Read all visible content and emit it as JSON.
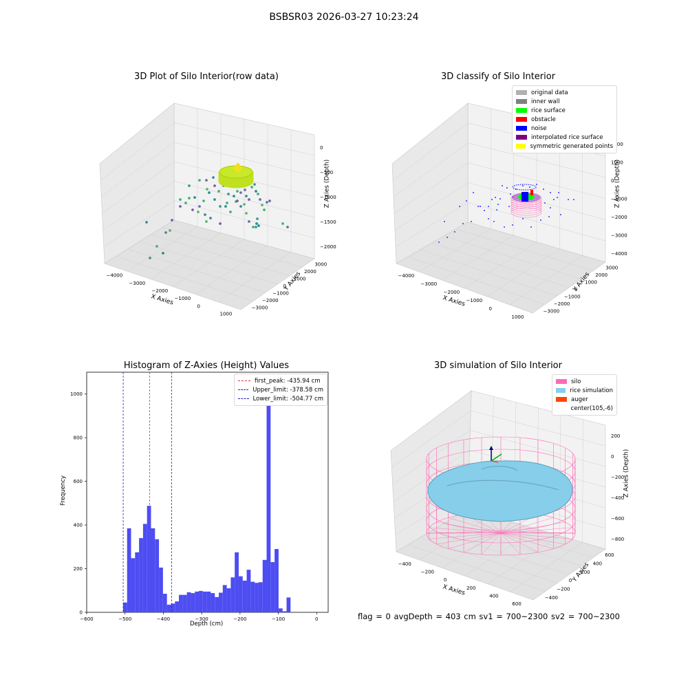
{
  "figure": {
    "title": "BSBSR03 2026-03-27 10:23:24",
    "footer": "flag = 0     avgDepth = 403 cm  sv1 = 700~2300  sv2 = 700~2300"
  },
  "colors": {
    "background": "#ffffff",
    "pane": "#f2f2f2",
    "grid": "#d0d0d0",
    "hist_bar": "#4d4df2",
    "first_peak": "#e03030",
    "limits": "#2020c0",
    "silo": "#ff69b4",
    "rice": "#87ceeb",
    "auger": "#ff4500"
  },
  "panels": {
    "raw": {
      "title": "3D Plot of Silo Interior(row data)",
      "x_ticks": [
        "−4000",
        "−3000",
        "−2000",
        "−1000",
        "0",
        "1000"
      ],
      "y_ticks": [
        "−3000",
        "−2000",
        "−1000",
        "0",
        "1000",
        "2000",
        "3000"
      ],
      "z_ticks": [
        "0",
        "−500",
        "−1000",
        "−1500",
        "−2000"
      ],
      "xlabel": "X Axies",
      "ylabel": "Y Axies",
      "zlabel": "Z Axies (Depth)"
    },
    "classify": {
      "title": "3D classify of Silo Interior",
      "x_ticks": [
        "−4000",
        "−3000",
        "−2000",
        "−1000",
        "0",
        "1000"
      ],
      "y_ticks": [
        "−3000",
        "−2000",
        "−1000",
        "0",
        "1000",
        "2000",
        "3000"
      ],
      "z_ticks": [
        "2000",
        "1000",
        "0",
        "−1000",
        "−2000",
        "−3000",
        "−4000"
      ],
      "xlabel": "X Axies",
      "ylabel": "Y Axies",
      "zlabel": "Z Axies (Depth)",
      "legend": [
        {
          "label": "original data",
          "color": "#b0b0b0"
        },
        {
          "label": "inner wall",
          "color": "#808080"
        },
        {
          "label": "rice surface",
          "color": "#00ff00"
        },
        {
          "label": "obstacle",
          "color": "#ff0000"
        },
        {
          "label": "noise",
          "color": "#0000ff"
        },
        {
          "label": "interpolated rice surface",
          "color": "#800080"
        },
        {
          "label": "symmetric generated points",
          "color": "#ffff00"
        }
      ]
    },
    "sim": {
      "title": "3D simulation of Silo Interior",
      "x_ticks": [
        "−400",
        "−200",
        "0",
        "200",
        "400",
        "600"
      ],
      "y_ticks": [
        "−400",
        "−200",
        "0",
        "200",
        "400",
        "600"
      ],
      "z_ticks": [
        "200",
        "0",
        "−200",
        "−400",
        "−600",
        "−800"
      ],
      "xlabel": "X Axies",
      "ylabel": "Y Axies",
      "zlabel": "Z Axies (Depth)",
      "legend": [
        {
          "label": "silo",
          "color": "#ff69b4"
        },
        {
          "label": "rice simulation",
          "color": "#87ceeb"
        },
        {
          "label": "auger",
          "color": "#ff4500"
        },
        {
          "label": "center(105,-6)",
          "color": ""
        }
      ]
    }
  },
  "chart_data": {
    "type": "bar",
    "title": "Histogram of Z-Axies (Height) Values",
    "xlabel": "Depth (cm)",
    "ylabel": "Frequency",
    "xlim": [
      -600,
      30
    ],
    "ylim": [
      0,
      1100
    ],
    "x_ticks": [
      -600,
      -500,
      -400,
      -300,
      -200,
      -100,
      0
    ],
    "y_ticks": [
      0,
      200,
      400,
      600,
      800,
      1000
    ],
    "bin_edges_start": -505,
    "bin_width": 10.4,
    "values": [
      45,
      385,
      248,
      275,
      340,
      405,
      488,
      385,
      335,
      205,
      85,
      35,
      40,
      50,
      80,
      80,
      92,
      88,
      95,
      98,
      95,
      95,
      88,
      70,
      90,
      125,
      110,
      160,
      275,
      165,
      145,
      195,
      140,
      135,
      138,
      240,
      1040,
      230,
      290,
      18,
      5,
      68
    ],
    "reference_lines": [
      {
        "label": "first_peak: -435.94 cm",
        "x": -435.94,
        "color": "#e03030"
      },
      {
        "label": "Upper_limit: -378.58 cm",
        "x": -378.58,
        "color": "#2020c0"
      },
      {
        "label": "Lower_limit: -504.77 cm",
        "x": -504.77,
        "color": "#2020c0"
      }
    ],
    "legend_position": "top-right"
  }
}
